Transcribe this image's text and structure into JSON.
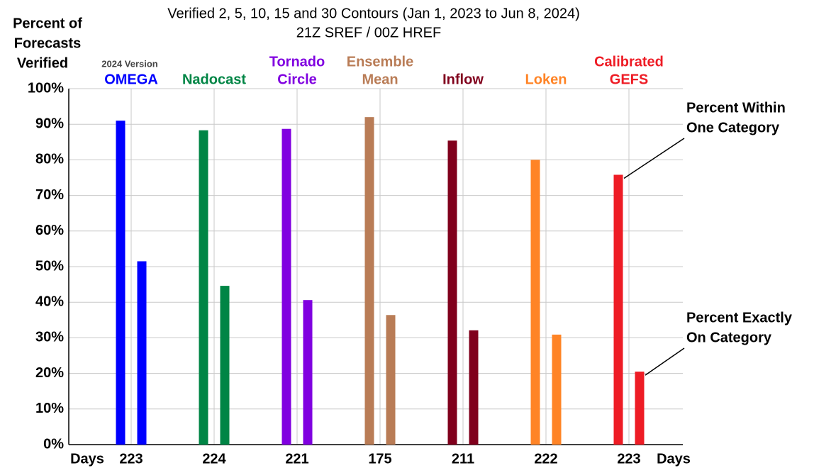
{
  "chart_data": {
    "type": "bar",
    "subtitle": [
      "Verified 2, 5, 10, 15 and 30 Contours (Jan 1, 2023 to Jun 8, 2024)",
      "21Z SREF / 00Z HREF"
    ],
    "y_label": [
      "Percent of",
      "Forecasts",
      "Verified"
    ],
    "x_label": "Days",
    "version_note": "2024 Version",
    "categories": [
      [
        "OMEGA"
      ],
      [
        "Nadocast"
      ],
      [
        "Tornado",
        "Circle"
      ],
      [
        "Ensemble",
        "Mean"
      ],
      [
        "Inflow"
      ],
      [
        "Loken"
      ],
      [
        "Calibrated",
        "GEFS"
      ]
    ],
    "days": [
      223,
      224,
      221,
      175,
      211,
      222,
      223
    ],
    "colors": [
      "#0000ff",
      "#008545",
      "#8000e0",
      "#b97c56",
      "#80001c",
      "#ff8426",
      "#ee1c25"
    ],
    "series": [
      {
        "name": [
          "Percent Within",
          "One Category"
        ],
        "values": [
          91,
          88.3,
          88.7,
          92,
          85.4,
          80,
          75.8
        ]
      },
      {
        "name": [
          "Percent Exactly",
          "On Category"
        ],
        "values": [
          51.5,
          44.6,
          40.6,
          36.4,
          32.1,
          30.9,
          20.5
        ]
      }
    ],
    "ylim": [
      0,
      100
    ],
    "yticks": [
      {
        "value": 0,
        "label": "0%"
      },
      {
        "value": 10,
        "label": "10%"
      },
      {
        "value": 20,
        "label": "20%"
      },
      {
        "value": 30,
        "label": "30%"
      },
      {
        "value": 40,
        "label": "40%"
      },
      {
        "value": 50,
        "label": "50%"
      },
      {
        "value": 60,
        "label": "60%"
      },
      {
        "value": 70,
        "label": "70%"
      },
      {
        "value": 80,
        "label": "80%"
      },
      {
        "value": 90,
        "label": "90%"
      },
      {
        "value": 100,
        "label": "100%"
      }
    ],
    "grid": true
  }
}
